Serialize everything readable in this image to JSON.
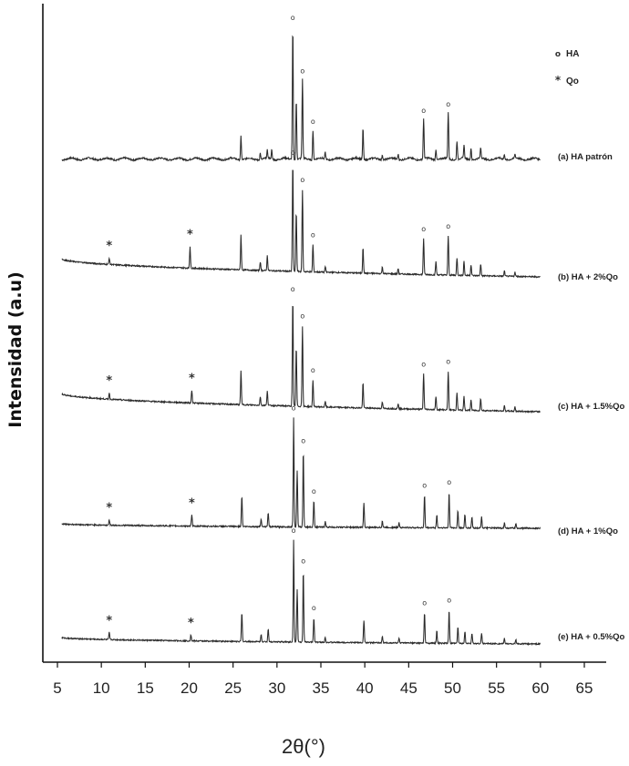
{
  "chart_data": {
    "type": "line",
    "xlabel": "2θ(°)",
    "ylabel": "Intensidad (a.u)",
    "xlim": [
      5,
      65
    ],
    "xticks": [
      5,
      10,
      15,
      20,
      25,
      30,
      35,
      40,
      45,
      50,
      55,
      60,
      65
    ],
    "yticks_shown": false,
    "legend": {
      "position": "top-right",
      "entries": [
        {
          "symbol": "o",
          "label": "HA"
        },
        {
          "symbol": "*",
          "label": "Qo"
        }
      ]
    },
    "series": [
      {
        "name": "(a) HA patrón",
        "x_range": [
          5.5,
          60
        ],
        "ha_peaks": [
          [
            25.9,
            0.18
          ],
          [
            28.1,
            0.05
          ],
          [
            28.9,
            0.06
          ],
          [
            29.4,
            0.07
          ],
          [
            31.8,
            1.0
          ],
          [
            32.2,
            0.45
          ],
          [
            32.9,
            0.6
          ],
          [
            34.1,
            0.22
          ],
          [
            35.5,
            0.05
          ],
          [
            39.8,
            0.24
          ],
          [
            42.0,
            0.04
          ],
          [
            43.8,
            0.04
          ],
          [
            46.7,
            0.3
          ],
          [
            48.1,
            0.08
          ],
          [
            49.5,
            0.35
          ],
          [
            50.5,
            0.14
          ],
          [
            51.3,
            0.1
          ],
          [
            52.1,
            0.09
          ],
          [
            53.2,
            0.08
          ],
          [
            55.9,
            0.04
          ],
          [
            57.1,
            0.03
          ]
        ],
        "qo_peaks": []
      },
      {
        "name": "(b) HA + 2%Qo",
        "x_range": [
          5.5,
          60
        ],
        "ha_peaks": [
          [
            25.9,
            0.32
          ],
          [
            28.1,
            0.08
          ],
          [
            28.9,
            0.14
          ],
          [
            31.8,
            1.0
          ],
          [
            32.2,
            0.55
          ],
          [
            32.9,
            0.75
          ],
          [
            34.1,
            0.25
          ],
          [
            35.5,
            0.05
          ],
          [
            39.8,
            0.24
          ],
          [
            42.0,
            0.06
          ],
          [
            43.8,
            0.05
          ],
          [
            46.7,
            0.33
          ],
          [
            48.1,
            0.12
          ],
          [
            49.5,
            0.36
          ],
          [
            50.5,
            0.16
          ],
          [
            51.3,
            0.13
          ],
          [
            52.1,
            0.1
          ],
          [
            53.2,
            0.11
          ],
          [
            55.9,
            0.05
          ],
          [
            57.1,
            0.04
          ]
        ],
        "qo_peaks": [
          [
            10.9,
            0.06
          ],
          [
            20.1,
            0.2
          ]
        ]
      },
      {
        "name": "(c) HA + 1.5%Qo",
        "x_range": [
          5.5,
          60
        ],
        "ha_peaks": [
          [
            25.9,
            0.32
          ],
          [
            28.1,
            0.08
          ],
          [
            28.9,
            0.14
          ],
          [
            31.8,
            1.0
          ],
          [
            32.2,
            0.55
          ],
          [
            32.9,
            0.75
          ],
          [
            34.1,
            0.25
          ],
          [
            35.5,
            0.05
          ],
          [
            39.8,
            0.24
          ],
          [
            42.0,
            0.06
          ],
          [
            43.8,
            0.05
          ],
          [
            46.7,
            0.33
          ],
          [
            48.1,
            0.12
          ],
          [
            49.5,
            0.36
          ],
          [
            50.5,
            0.16
          ],
          [
            51.3,
            0.13
          ],
          [
            52.1,
            0.1
          ],
          [
            53.2,
            0.11
          ],
          [
            55.9,
            0.05
          ],
          [
            57.1,
            0.04
          ]
        ],
        "qo_peaks": [
          [
            10.9,
            0.06
          ],
          [
            20.3,
            0.12
          ]
        ]
      },
      {
        "name": "(d) HA + 1%Qo",
        "x_range": [
          5.5,
          60
        ],
        "ha_peaks": [
          [
            26.0,
            0.28
          ],
          [
            28.2,
            0.07
          ],
          [
            29.0,
            0.13
          ],
          [
            31.9,
            1.0
          ],
          [
            32.3,
            0.52
          ],
          [
            33.0,
            0.7
          ],
          [
            34.2,
            0.24
          ],
          [
            35.5,
            0.05
          ],
          [
            39.9,
            0.22
          ],
          [
            42.0,
            0.06
          ],
          [
            43.9,
            0.05
          ],
          [
            46.8,
            0.3
          ],
          [
            48.2,
            0.12
          ],
          [
            49.6,
            0.33
          ],
          [
            50.6,
            0.16
          ],
          [
            51.4,
            0.12
          ],
          [
            52.2,
            0.1
          ],
          [
            53.3,
            0.1
          ],
          [
            55.9,
            0.05
          ],
          [
            57.2,
            0.04
          ]
        ],
        "qo_peaks": [
          [
            10.9,
            0.05
          ],
          [
            20.3,
            0.1
          ]
        ]
      },
      {
        "name": "(e) HA + 0.5%Qo",
        "x_range": [
          5.5,
          60
        ],
        "ha_peaks": [
          [
            26.0,
            0.28
          ],
          [
            28.2,
            0.07
          ],
          [
            29.0,
            0.13
          ],
          [
            31.9,
            1.0
          ],
          [
            32.3,
            0.52
          ],
          [
            33.0,
            0.7
          ],
          [
            34.2,
            0.24
          ],
          [
            35.5,
            0.05
          ],
          [
            39.9,
            0.22
          ],
          [
            42.0,
            0.06
          ],
          [
            43.9,
            0.05
          ],
          [
            46.8,
            0.3
          ],
          [
            48.2,
            0.12
          ],
          [
            49.6,
            0.33
          ],
          [
            50.6,
            0.16
          ],
          [
            51.4,
            0.12
          ],
          [
            52.2,
            0.1
          ],
          [
            53.3,
            0.1
          ],
          [
            55.9,
            0.05
          ],
          [
            57.2,
            0.04
          ]
        ],
        "qo_peaks": [
          [
            10.9,
            0.07
          ],
          [
            20.2,
            0.06
          ]
        ]
      }
    ],
    "ha_marked_peaks": [
      31.8,
      32.9,
      34.1,
      46.7,
      49.5
    ],
    "qo_marked_peaks": [
      10.9,
      20.2
    ]
  }
}
